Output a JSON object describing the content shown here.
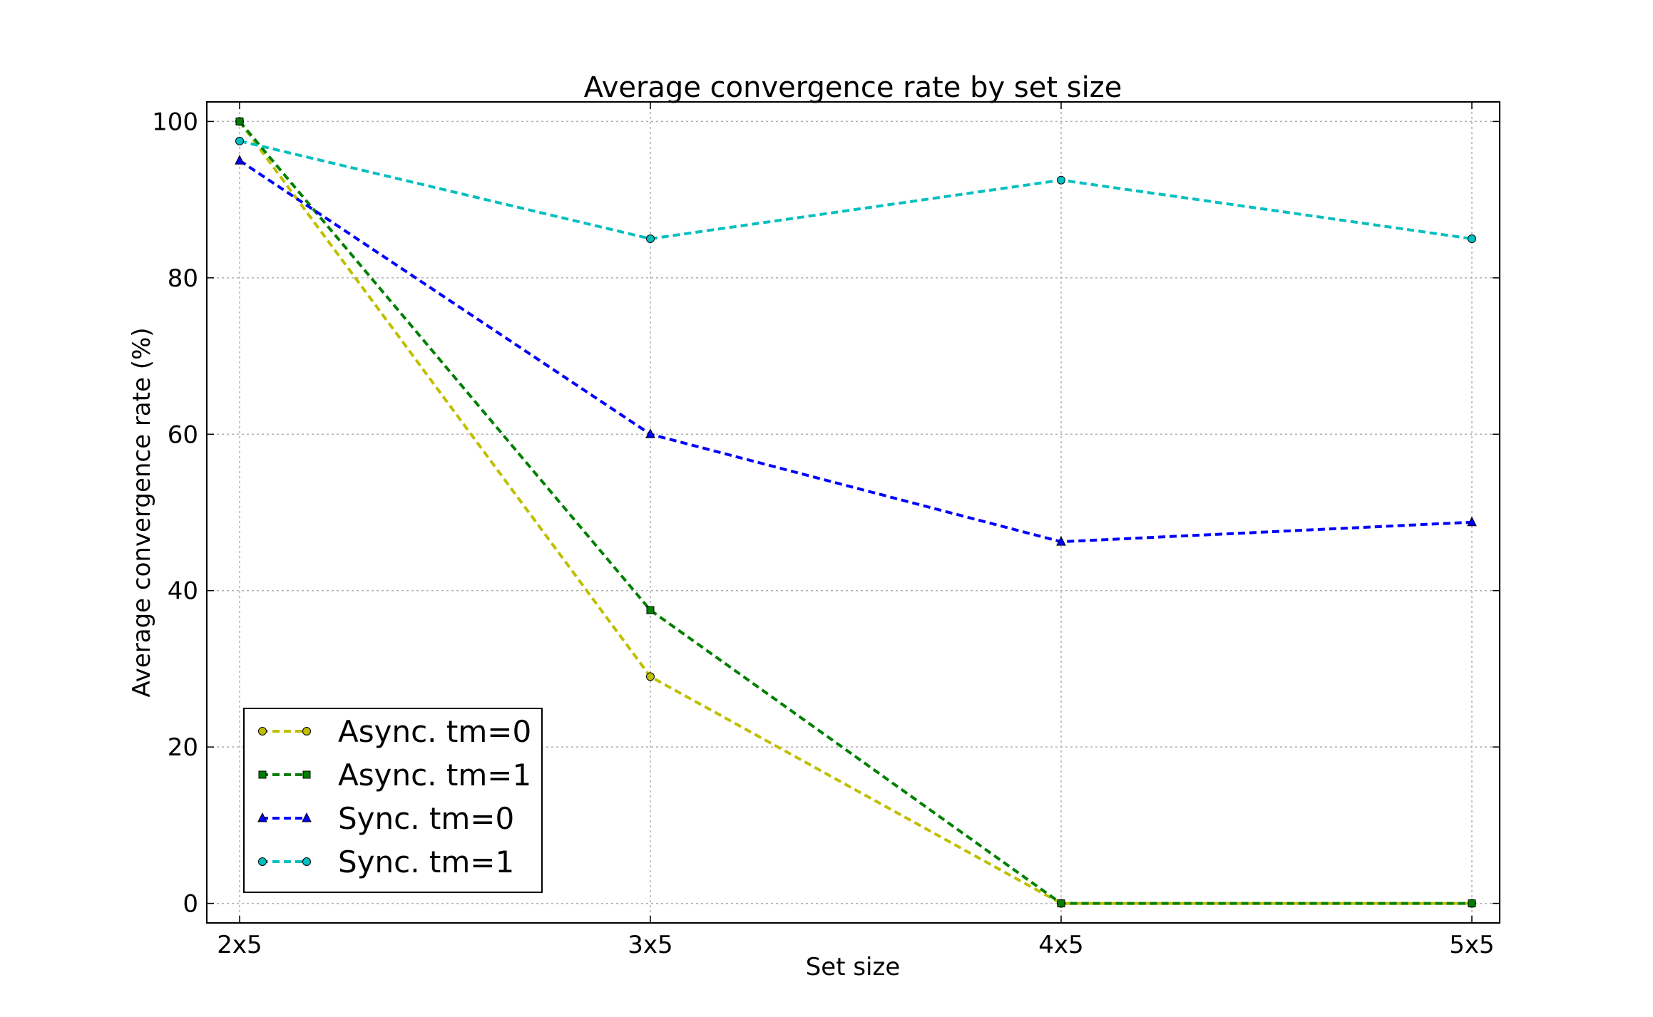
{
  "chart_data": {
    "type": "line",
    "title": "Average convergence rate by set size",
    "xlabel": "Set size",
    "ylabel": "Average convergence rate (%)",
    "categories": [
      "2x5",
      "3x5",
      "4x5",
      "5x5"
    ],
    "ylim": [
      -2.5,
      102.5
    ],
    "yticks": [
      0,
      20,
      40,
      60,
      80,
      100
    ],
    "grid": true,
    "legend_position": "lower-left",
    "series": [
      {
        "name": "Async. tm=0",
        "values": [
          100,
          29,
          0,
          0
        ],
        "color": "#bfbf00",
        "marker": "circle",
        "linestyle": "dashed"
      },
      {
        "name": "Async. tm=1",
        "values": [
          100,
          37.5,
          0,
          0
        ],
        "color": "#008000",
        "marker": "square",
        "linestyle": "dashed"
      },
      {
        "name": "Sync. tm=0",
        "values": [
          95,
          60,
          46.25,
          48.75
        ],
        "color": "#0000ff",
        "marker": "triangle",
        "linestyle": "dashed"
      },
      {
        "name": "Sync. tm=1",
        "values": [
          97.5,
          85,
          92.5,
          85
        ],
        "color": "#00bfbf",
        "marker": "circle",
        "linestyle": "dashed"
      }
    ]
  }
}
